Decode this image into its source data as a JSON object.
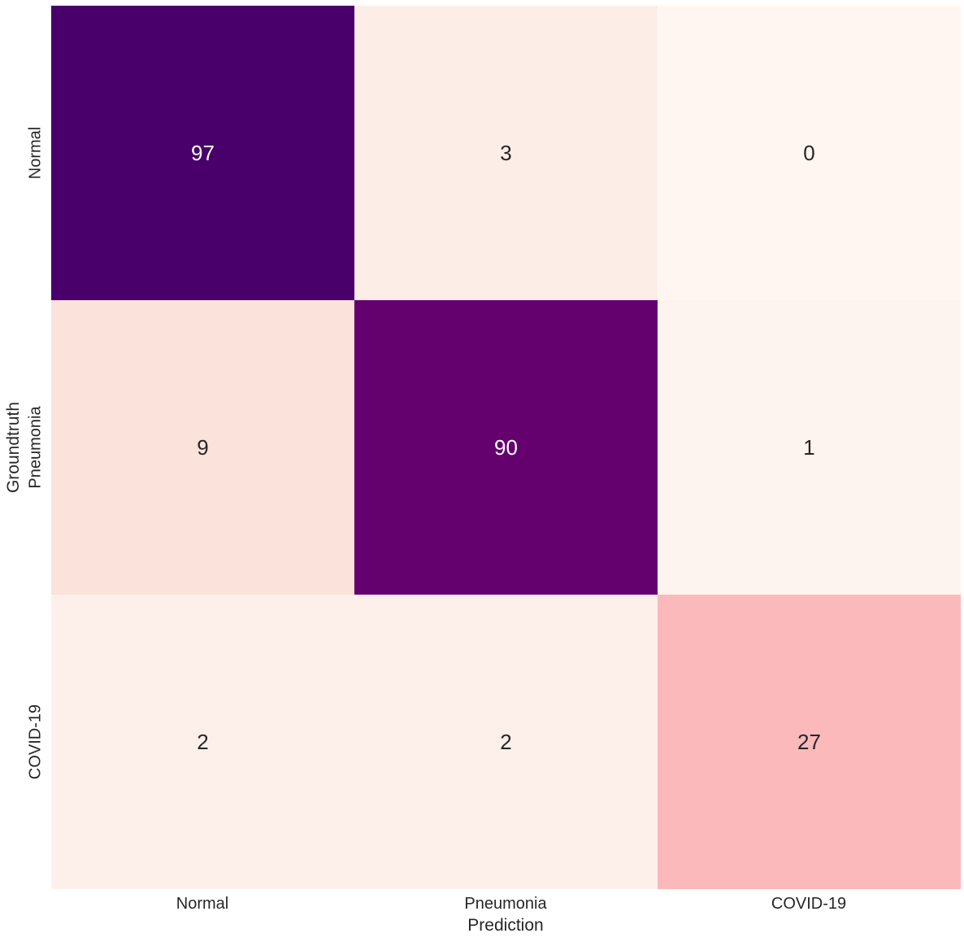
{
  "chart_data": {
    "type": "heatmap",
    "title": "",
    "xlabel": "Prediction",
    "ylabel": "Groundtruth",
    "x_categories": [
      "Normal",
      "Pneumonia",
      "COVID-19"
    ],
    "y_categories": [
      "Normal",
      "Pneumonia",
      "COVID-19"
    ],
    "matrix": [
      [
        97,
        3,
        0
      ],
      [
        9,
        90,
        1
      ],
      [
        2,
        2,
        27
      ]
    ],
    "value_range": [
      0,
      97
    ],
    "colormap": "RdPu",
    "grid": false,
    "legend": false,
    "colorbar": false,
    "cell_colors": [
      [
        "#49006A",
        "#FCEDE7",
        "#FFF6F1"
      ],
      [
        "#FBE2DB",
        "#65016F",
        "#FEF4EF"
      ],
      [
        "#FDF0EA",
        "#FDF0EA",
        "#FBB9BC"
      ]
    ],
    "text_colors": [
      [
        "#FFFFFF",
        "#262626",
        "#262626"
      ],
      [
        "#262626",
        "#FFFFFF",
        "#262626"
      ],
      [
        "#262626",
        "#262626",
        "#262626"
      ]
    ],
    "label_color": "#262626",
    "background_color": "#FFFFFF"
  }
}
